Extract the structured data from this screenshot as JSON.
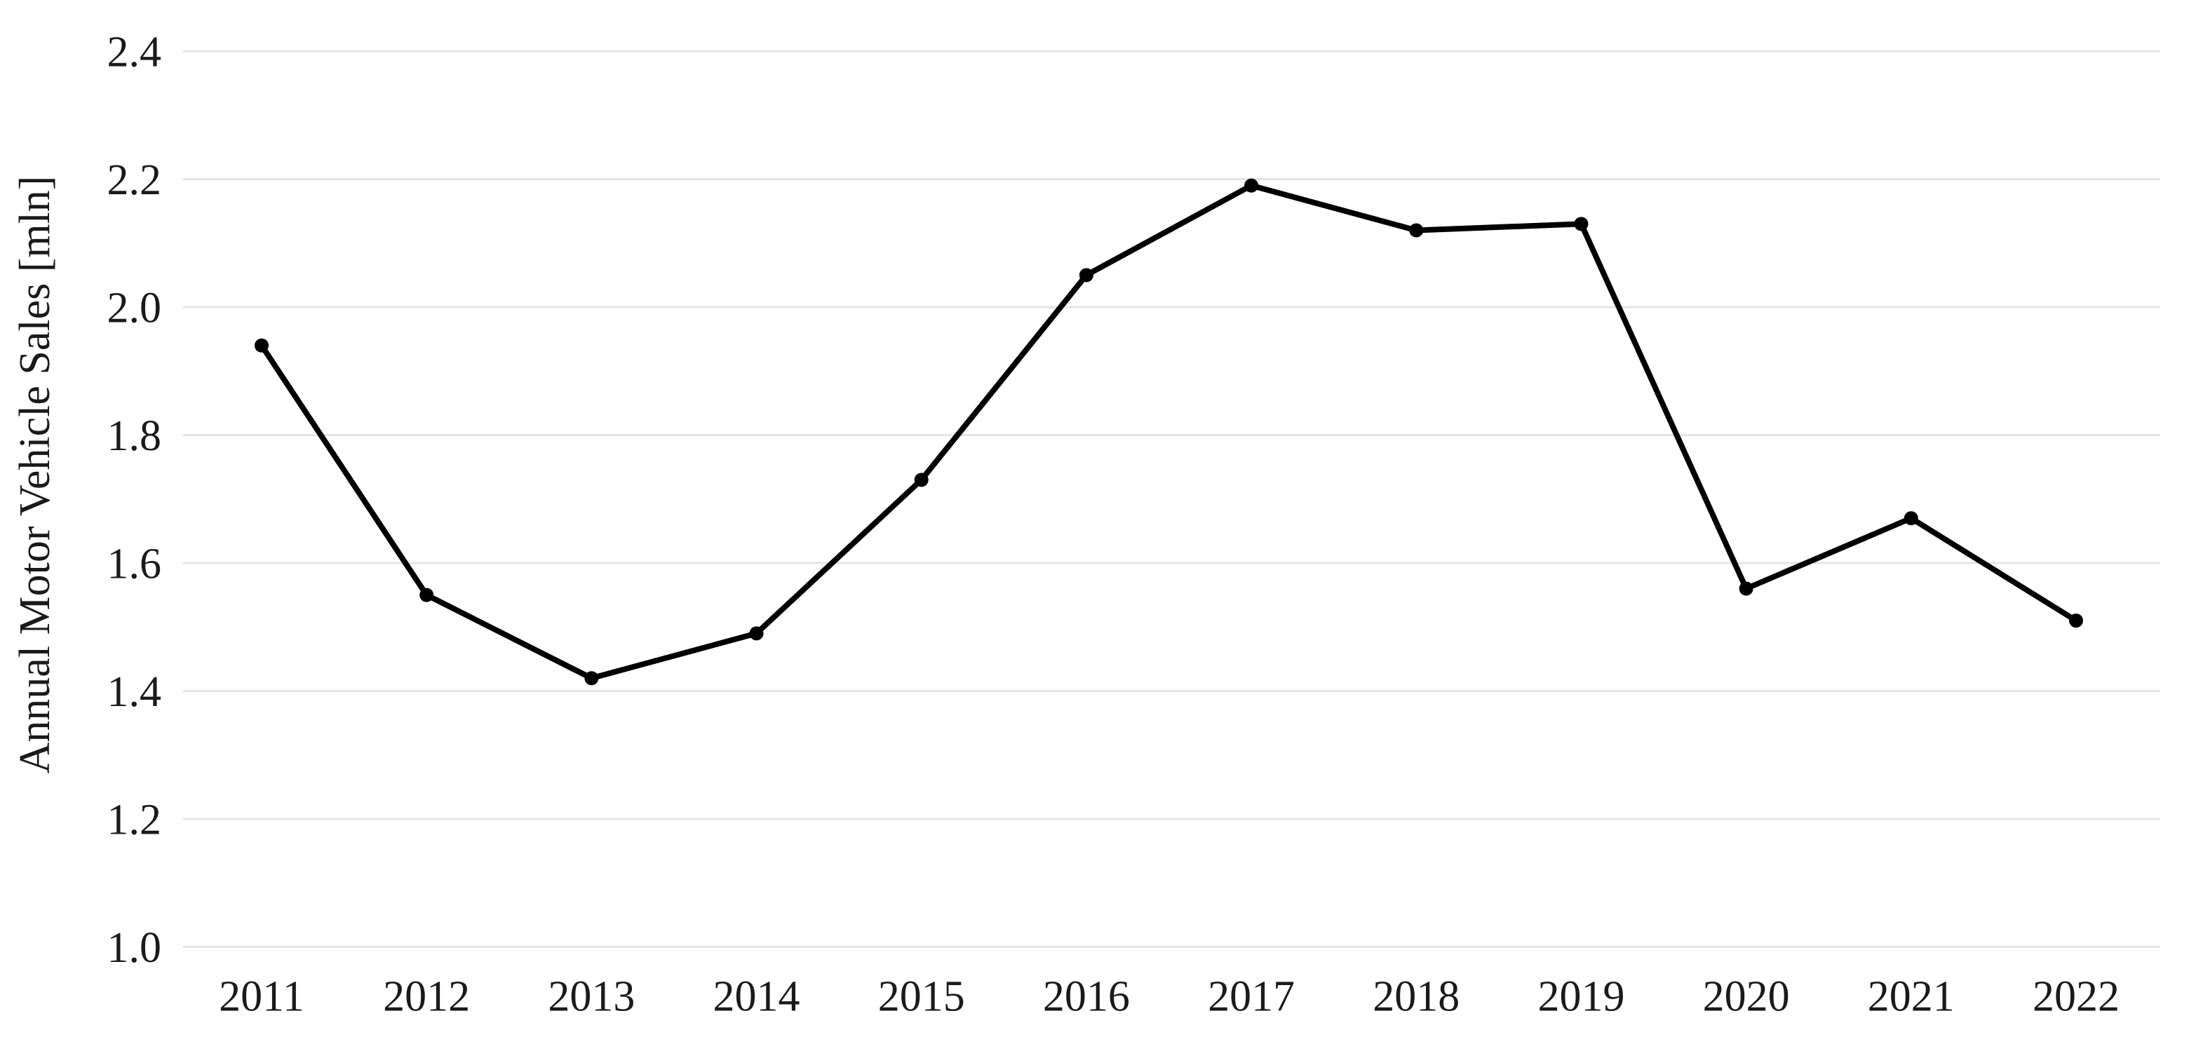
{
  "chart_data": {
    "type": "line",
    "categories": [
      "2011",
      "2012",
      "2013",
      "2014",
      "2015",
      "2016",
      "2017",
      "2018",
      "2019",
      "2020",
      "2021",
      "2022"
    ],
    "values": [
      1.94,
      1.55,
      1.42,
      1.49,
      1.73,
      2.05,
      2.19,
      2.12,
      2.13,
      1.56,
      1.67,
      1.51
    ],
    "title": "",
    "xlabel": "",
    "ylabel": "Annual Motor Vehicle Sales [mln]",
    "ylim": [
      1.0,
      2.4
    ],
    "ytick_step": 0.2,
    "ytick_labels": [
      "2.4",
      "2.2",
      "2.0",
      "1.8",
      "1.6",
      "1.4",
      "1.2",
      "1.0"
    ],
    "grid": "horizontal-only",
    "legend_position": "none",
    "marker": "circle",
    "colors": {
      "line": "#000000",
      "marker": "#000000",
      "grid": "#e4e4e4",
      "text": "#1a1a1a",
      "background": "#ffffff"
    }
  }
}
